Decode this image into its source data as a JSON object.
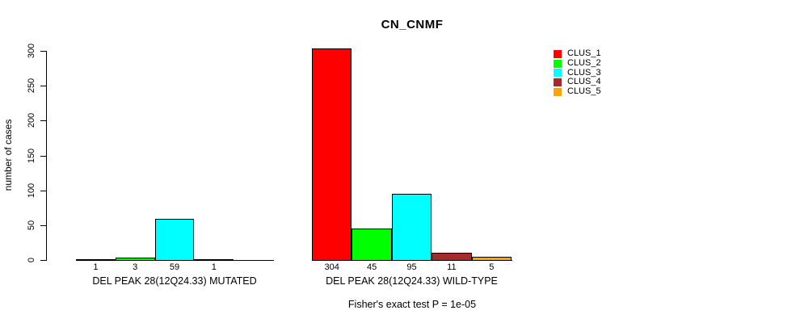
{
  "chart_data": {
    "type": "bar",
    "title": "CN_CNMF",
    "ylabel": "number of cases",
    "ylim": [
      0,
      300
    ],
    "yticks": [
      0,
      50,
      100,
      150,
      200,
      250,
      300
    ],
    "grid": false,
    "axis_color": "#000000",
    "legend": {
      "position": "right",
      "entries": [
        {
          "label": "CLUS_1",
          "color": "#FF0000"
        },
        {
          "label": "CLUS_2",
          "color": "#00FF00"
        },
        {
          "label": "CLUS_3",
          "color": "#00FFFF"
        },
        {
          "label": "CLUS_4",
          "color": "#A52A2A"
        },
        {
          "label": "CLUS_5",
          "color": "#FFA500"
        }
      ]
    },
    "groups": [
      {
        "label": "DEL PEAK 28(12Q24.33) MUTATED",
        "values": [
          1,
          3,
          59,
          1,
          0
        ],
        "bar_labels": [
          "1",
          "3",
          "59",
          "1",
          ""
        ]
      },
      {
        "label": "DEL PEAK 28(12Q24.33) WILD-TYPE",
        "values": [
          304,
          45,
          95,
          11,
          5
        ],
        "bar_labels": [
          "304",
          "45",
          "95",
          "11",
          "5"
        ]
      }
    ],
    "footnote": "Fisher's exact test P = 1e-05"
  }
}
